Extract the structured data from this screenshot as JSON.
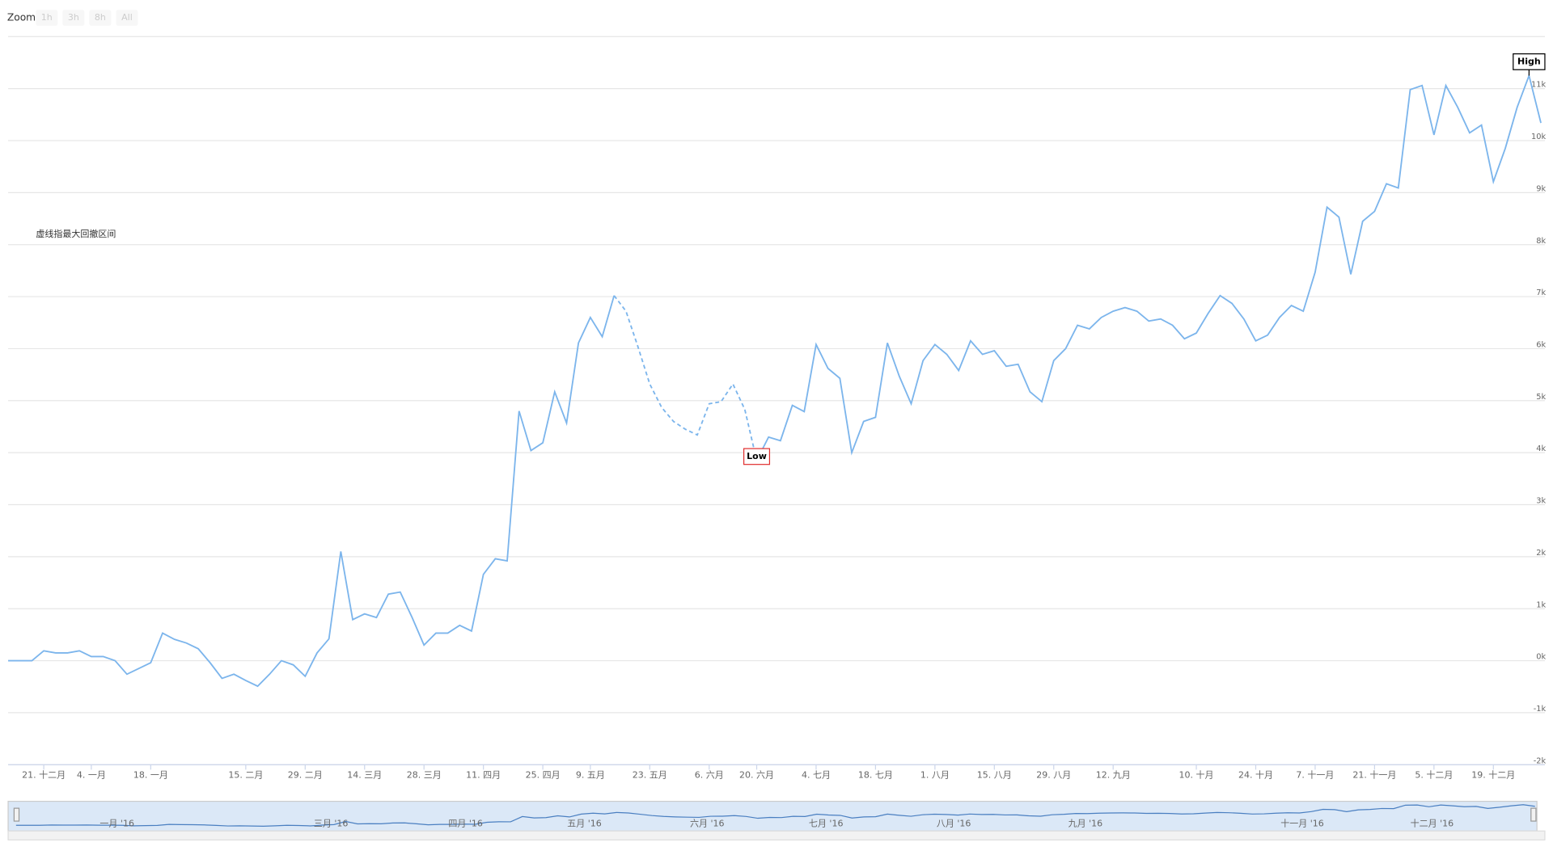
{
  "chart_data": {
    "type": "line",
    "annotation": "虚线指最大回撤区间",
    "zoom": {
      "label": "Zoom",
      "buttons": [
        "1h",
        "3h",
        "8h",
        "All"
      ]
    },
    "categories": [
      null,
      null,
      null,
      "21. 十二月",
      null,
      null,
      null,
      "4. 一月",
      null,
      null,
      null,
      null,
      "18. 一月",
      null,
      null,
      null,
      null,
      null,
      null,
      null,
      "15. 二月",
      null,
      null,
      null,
      null,
      "29. 二月",
      null,
      null,
      null,
      null,
      "14. 三月",
      null,
      null,
      null,
      null,
      "28. 三月",
      null,
      null,
      null,
      null,
      "11. 四月",
      null,
      null,
      null,
      null,
      "25. 四月",
      null,
      null,
      null,
      "9. 五月",
      null,
      null,
      null,
      null,
      "23. 五月",
      null,
      null,
      null,
      null,
      "6. 六月",
      null,
      null,
      null,
      "20. 六月",
      null,
      null,
      null,
      null,
      "4. 七月",
      null,
      null,
      null,
      null,
      "18. 七月",
      null,
      null,
      null,
      null,
      "1. 八月",
      null,
      null,
      null,
      null,
      "15. 八月",
      null,
      null,
      null,
      null,
      "29. 八月",
      null,
      null,
      null,
      null,
      "12. 九月",
      null,
      null,
      null,
      null,
      null,
      null,
      "10. 十月",
      null,
      null,
      null,
      null,
      "24. 十月",
      null,
      null,
      null,
      null,
      "7. 十一月",
      null,
      null,
      null,
      null,
      "21. 十一月",
      null,
      null,
      null,
      null,
      "5. 十二月",
      null,
      null,
      null,
      null,
      "19. 十二月",
      null,
      null,
      null,
      null
    ],
    "values": [
      0,
      0,
      0,
      190,
      150,
      150,
      190,
      80,
      80,
      0,
      -260,
      -150,
      -40,
      530,
      410,
      340,
      230,
      -40,
      -340,
      -260,
      -380,
      -490,
      -260,
      0,
      -80,
      -300,
      150,
      420,
      2100,
      790,
      900,
      830,
      1280,
      1320,
      830,
      300,
      530,
      530,
      680,
      570,
      1660,
      1960,
      1920,
      4800,
      4040,
      4190,
      5170,
      4570,
      6110,
      6600,
      6230,
      7020,
      6720,
      6040,
      5320,
      4870,
      4600,
      4450,
      4340,
      4940,
      4980,
      5320,
      4830,
      3850,
      4300,
      4230,
      4910,
      4790,
      6080,
      5620,
      5430,
      4000,
      4600,
      4680,
      6110,
      5470,
      4940,
      5770,
      6080,
      5890,
      5580,
      6150,
      5890,
      5960,
      5660,
      5700,
      5170,
      4980,
      5770,
      6000,
      6450,
      6380,
      6600,
      6720,
      6790,
      6720,
      6530,
      6570,
      6450,
      6190,
      6300,
      6680,
      7020,
      6870,
      6570,
      6150,
      6260,
      6600,
      6830,
      6720,
      7470,
      8720,
      8530,
      7430,
      8450,
      8640,
      9170,
      9090,
      10980,
      11060,
      10110,
      11060,
      10640,
      10150,
      10300,
      9210,
      9850,
      10640,
      11250,
      10340
    ],
    "color": "#7cb5ec",
    "dashed": {
      "from": 51,
      "to": 63
    },
    "flags": [
      {
        "index": 128,
        "label": "High"
      },
      {
        "index": 63,
        "label": "Low"
      }
    ],
    "ylim": [
      -2000,
      12000
    ],
    "yticks": [
      {
        "value": -2000,
        "label": "-2k"
      },
      {
        "value": -1000,
        "label": "-1k"
      },
      {
        "value": 0,
        "label": "0k"
      },
      {
        "value": 1000,
        "label": "1k"
      },
      {
        "value": 2000,
        "label": "2k"
      },
      {
        "value": 3000,
        "label": "3k"
      },
      {
        "value": 4000,
        "label": "4k"
      },
      {
        "value": 5000,
        "label": "5k"
      },
      {
        "value": 6000,
        "label": "6k"
      },
      {
        "value": 7000,
        "label": "7k"
      },
      {
        "value": 8000,
        "label": "8k"
      },
      {
        "value": 9000,
        "label": "9k"
      },
      {
        "value": 10000,
        "label": "10k"
      },
      {
        "value": 11000,
        "label": "11k"
      }
    ],
    "grid": true,
    "navigator": {
      "labels": [
        "一月 '16",
        "三月 '16",
        "四月 '16",
        "五月 '16",
        "六月 '16",
        "七月 '16",
        "八月 '16",
        "九月 '16",
        "十一月 '16",
        "十二月 '16"
      ]
    }
  }
}
